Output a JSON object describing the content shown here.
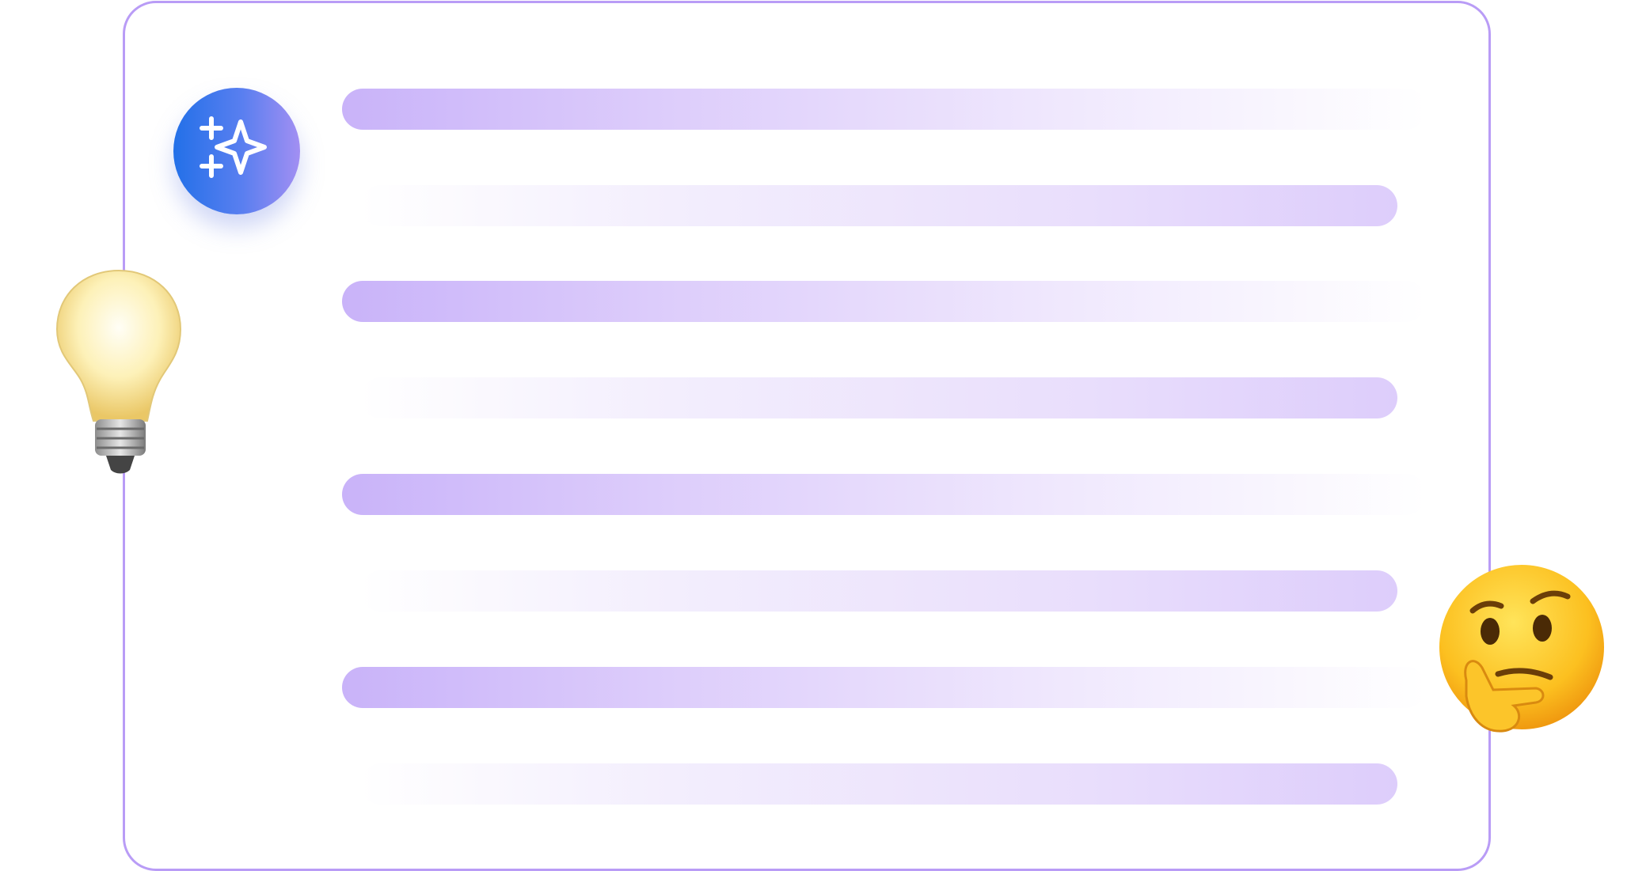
{
  "colors": {
    "frame_border": "#b99cf6",
    "avatar_gradient_start": "#2370e8",
    "avatar_gradient_end": "#a28ff2",
    "bar_accent": "#c9b3f9"
  },
  "icons": {
    "avatar": "sparkles-icon",
    "left_decoration": "lightbulb-icon",
    "right_decoration": "thinking-face-icon"
  },
  "placeholder_lines": [
    {
      "align": "left"
    },
    {
      "align": "right"
    },
    {
      "align": "left"
    },
    {
      "align": "right"
    },
    {
      "align": "left"
    },
    {
      "align": "right"
    },
    {
      "align": "left"
    },
    {
      "align": "right"
    }
  ]
}
